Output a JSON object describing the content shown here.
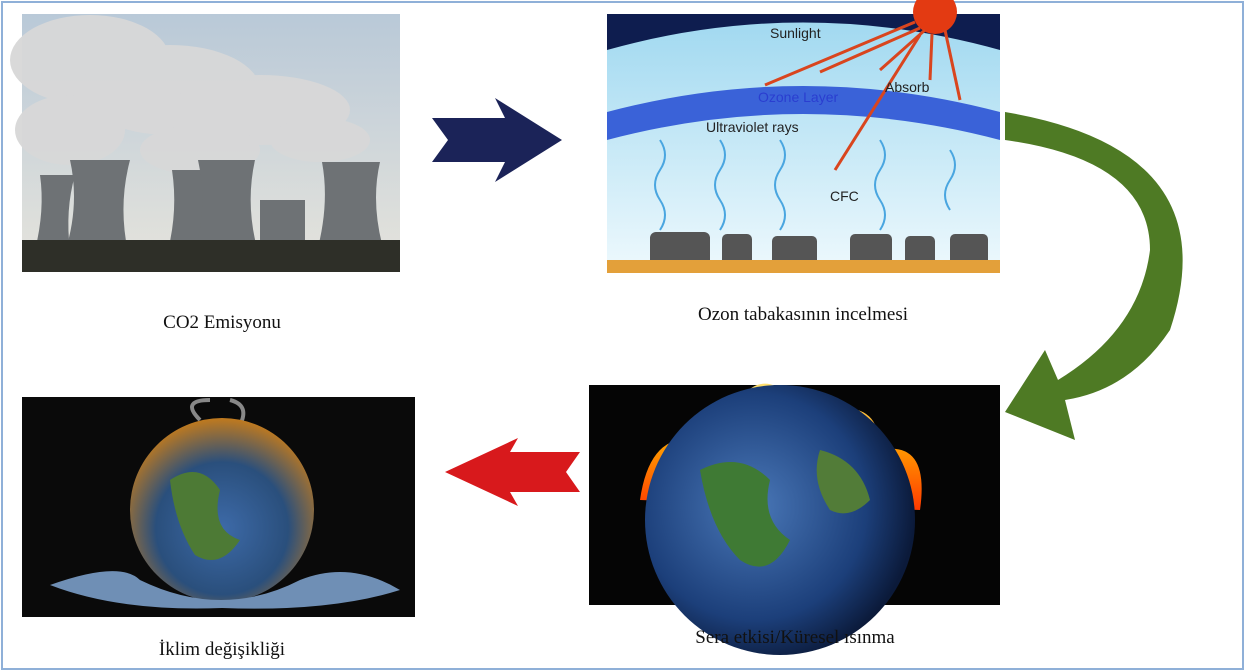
{
  "nodes": [
    {
      "label": "CO2 Emisyonu"
    },
    {
      "label": "Ozon tabakasının incelmesi",
      "diagram_labels": [
        "Sunlight",
        "Absorb",
        "Ozone Layer",
        "Ultraviolet rays",
        "CFC"
      ]
    },
    {
      "label": "Sera etkisi/Küresel ısınma"
    },
    {
      "label": "İklim değişikliği"
    }
  ]
}
